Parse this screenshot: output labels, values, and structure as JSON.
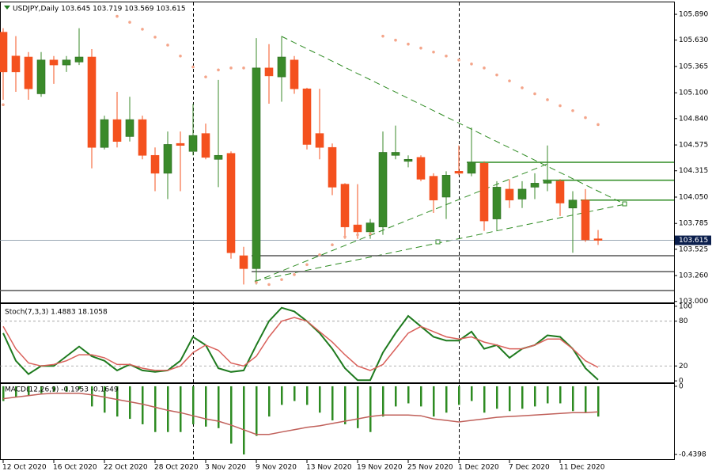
{
  "chart_data": [
    {
      "type": "candlestick",
      "title": "USDJPY,Daily 103.645 103.719 103.569 103.615",
      "categories": [
        "12 Oct 2020",
        null,
        null,
        null,
        "16 Oct 2020",
        null,
        null,
        null,
        "22 Oct 2020",
        null,
        null,
        null,
        "28 Oct 2020",
        null,
        null,
        null,
        "3 Nov 2020",
        null,
        null,
        null,
        "9 Nov 2020",
        null,
        null,
        null,
        "13 Nov 2020",
        null,
        null,
        null,
        "19 Nov 2020",
        null,
        null,
        null,
        "25 Nov 2020",
        null,
        null,
        null,
        "1 Dec 2020",
        null,
        null,
        null,
        "7 Dec 2020",
        null,
        null,
        null,
        "11 Dec 2020",
        null,
        null,
        null
      ],
      "open": [
        105.71,
        105.47,
        105.46,
        105.09,
        105.43,
        105.38,
        105.41,
        105.46,
        104.55,
        104.83,
        104.66,
        104.83,
        104.47,
        104.29,
        104.59,
        104.51,
        104.69,
        104.43,
        104.49,
        103.46,
        103.33,
        105.35,
        105.26,
        105.43,
        105.14,
        104.69,
        104.55,
        104.18,
        103.77,
        103.7,
        103.75,
        104.47,
        104.41,
        104.45,
        104.26,
        104.05,
        104.31,
        104.29,
        104.39,
        103.83,
        104.13,
        104.03,
        104.15,
        104.19,
        104.21,
        103.94,
        104.02,
        103.63
      ],
      "high": [
        105.75,
        105.67,
        105.51,
        105.51,
        105.47,
        105.47,
        105.75,
        105.54,
        104.87,
        105.11,
        105.06,
        104.87,
        104.55,
        104.71,
        104.71,
        104.99,
        104.79,
        105.23,
        104.51,
        103.55,
        105.65,
        105.59,
        105.67,
        105.47,
        105.15,
        105.14,
        104.59,
        104.19,
        104.18,
        103.83,
        104.71,
        104.77,
        104.47,
        104.47,
        104.29,
        104.31,
        104.57,
        104.75,
        104.41,
        104.21,
        104.23,
        104.21,
        104.29,
        104.57,
        104.23,
        104.11,
        104.13,
        103.719
      ],
      "low": [
        105.03,
        105.11,
        105.03,
        105.06,
        105.19,
        105.31,
        105.38,
        104.34,
        104.53,
        104.55,
        104.61,
        104.43,
        104.11,
        104.03,
        104.11,
        104.47,
        104.43,
        104.15,
        103.43,
        103.17,
        103.17,
        104.99,
        105.01,
        105.09,
        104.53,
        104.43,
        104.07,
        103.63,
        103.63,
        103.63,
        103.67,
        104.43,
        104.35,
        104.21,
        103.89,
        103.83,
        104.27,
        104.26,
        103.71,
        103.71,
        103.94,
        103.94,
        104.03,
        104.11,
        103.86,
        103.49,
        103.6,
        103.569
      ],
      "close": [
        105.31,
        105.31,
        105.14,
        105.43,
        105.38,
        105.43,
        105.46,
        104.55,
        104.83,
        104.61,
        104.83,
        104.47,
        104.29,
        104.58,
        104.57,
        104.67,
        104.45,
        104.47,
        103.49,
        103.33,
        105.35,
        105.27,
        105.46,
        105.14,
        104.58,
        104.55,
        104.15,
        103.75,
        103.7,
        103.79,
        104.5,
        104.5,
        104.43,
        104.23,
        104.02,
        104.27,
        104.29,
        104.4,
        103.81,
        104.15,
        104.02,
        104.13,
        104.19,
        104.21,
        103.99,
        104.02,
        103.62,
        103.615
      ],
      "up_color": "#3a8a2a",
      "down_color": "#f4511e",
      "sar": {
        "color": "#f4a58a",
        "values": [
          104.98,
          null,
          null,
          null,
          null,
          null,
          null,
          null,
          null,
          105.87,
          105.81,
          105.74,
          105.66,
          105.58,
          105.47,
          105.36,
          105.26,
          105.33,
          105.35,
          105.35,
          103.19,
          103.17,
          103.22,
          103.27,
          103.37,
          103.47,
          103.57,
          103.65,
          103.67,
          103.68,
          105.67,
          105.63,
          105.59,
          105.55,
          105.51,
          105.47,
          105.43,
          105.39,
          105.35,
          105.28,
          105.22,
          105.15,
          105.09,
          105.03,
          104.97,
          104.92,
          104.85,
          104.78
        ]
      },
      "hlines": [
        {
          "value": 104.4,
          "color": "#2e8b22",
          "from": 37
        },
        {
          "value": 104.22,
          "color": "#2e8b22",
          "from": 43
        },
        {
          "value": 104.02,
          "color": "#2e8b22",
          "from": 46
        },
        {
          "value": 103.46,
          "color": "#555555",
          "from": 20
        },
        {
          "value": 103.3,
          "color": "#555555",
          "from": 20
        },
        {
          "value": 103.11,
          "color": "#555555",
          "from": 0
        }
      ],
      "last_price": 103.615,
      "ylim": [
        102.99,
        106.01
      ],
      "yticks": [
        {
          "value": 105.89,
          "label": "105.890"
        },
        {
          "value": 105.63,
          "label": "105.630"
        },
        105.365,
        {
          "value": 105.1,
          "label": "105.100"
        },
        {
          "value": 104.84,
          "label": "104.840"
        },
        104.575,
        104.315,
        {
          "value": 104.05,
          "label": "104.050"
        },
        103.785,
        103.525,
        {
          "value": 103.26,
          "label": "103.260"
        },
        {
          "value": 103,
          "label": "103.000"
        }
      ]
    },
    {
      "type": "line",
      "title": "Stoch(7,3,3) 1.4883 18.1058",
      "series": [
        {
          "color": "#1e7a1e",
          "width": 2,
          "values": [
            64,
            27,
            9,
            20,
            20,
            33,
            46,
            33,
            27,
            14,
            22,
            14,
            12,
            14,
            27,
            59,
            48,
            17,
            12,
            14,
            48,
            80,
            98,
            93,
            80,
            64,
            43,
            17,
            1,
            1,
            38,
            64,
            87,
            73,
            59,
            54,
            54,
            66,
            43,
            48,
            31,
            43,
            48,
            61,
            59,
            43,
            17,
            1.4883
          ]
        },
        {
          "color": "#d9605a",
          "width": 1.5,
          "values": [
            73,
            43,
            24,
            20,
            22,
            27,
            35,
            35,
            31,
            22,
            22,
            17,
            14,
            14,
            20,
            38,
            48,
            41,
            24,
            20,
            33,
            59,
            80,
            85,
            80,
            66,
            52,
            35,
            20,
            14,
            22,
            43,
            64,
            73,
            66,
            59,
            56,
            59,
            52,
            48,
            43,
            43,
            48,
            56,
            56,
            43,
            27,
            18.1058
          ]
        }
      ],
      "levels": [
        20,
        80
      ],
      "ylim": [
        -2,
        103
      ],
      "yticks": [
        100,
        80,
        20,
        0
      ]
    },
    {
      "type": "macd",
      "title": "MACD(12,26,9) -0.1953 -0.1649",
      "histogram": {
        "color": "#2e8b22",
        "values": [
          -0.095,
          -0.07,
          -0.06,
          -0.045,
          -0.035,
          -0.035,
          -0.02,
          -0.13,
          -0.17,
          -0.195,
          -0.21,
          -0.245,
          -0.295,
          -0.295,
          -0.295,
          -0.245,
          -0.26,
          -0.27,
          -0.37,
          -0.4398,
          -0.32,
          -0.195,
          -0.12,
          -0.095,
          -0.12,
          -0.17,
          -0.22,
          -0.245,
          -0.27,
          -0.295,
          -0.195,
          -0.13,
          -0.11,
          -0.13,
          -0.195,
          -0.17,
          -0.12,
          -0.095,
          -0.17,
          -0.145,
          -0.16,
          -0.145,
          -0.13,
          -0.11,
          -0.11,
          -0.16,
          -0.17,
          -0.1953
        ]
      },
      "signal": {
        "color": "#c0605a",
        "values": [
          -0.08,
          -0.07,
          -0.06,
          -0.05,
          -0.045,
          -0.045,
          -0.045,
          -0.055,
          -0.07,
          -0.085,
          -0.1,
          -0.115,
          -0.135,
          -0.155,
          -0.17,
          -0.19,
          -0.21,
          -0.225,
          -0.25,
          -0.28,
          -0.31,
          -0.31,
          -0.295,
          -0.28,
          -0.265,
          -0.255,
          -0.24,
          -0.225,
          -0.21,
          -0.195,
          -0.185,
          -0.185,
          -0.185,
          -0.19,
          -0.21,
          -0.22,
          -0.23,
          -0.22,
          -0.21,
          -0.2,
          -0.195,
          -0.19,
          -0.185,
          -0.18,
          -0.175,
          -0.17,
          -0.17,
          -0.1649
        ]
      },
      "ylim": [
        -0.47,
        0.015
      ],
      "yticks": [
        0,
        -0.4398
      ]
    }
  ]
}
